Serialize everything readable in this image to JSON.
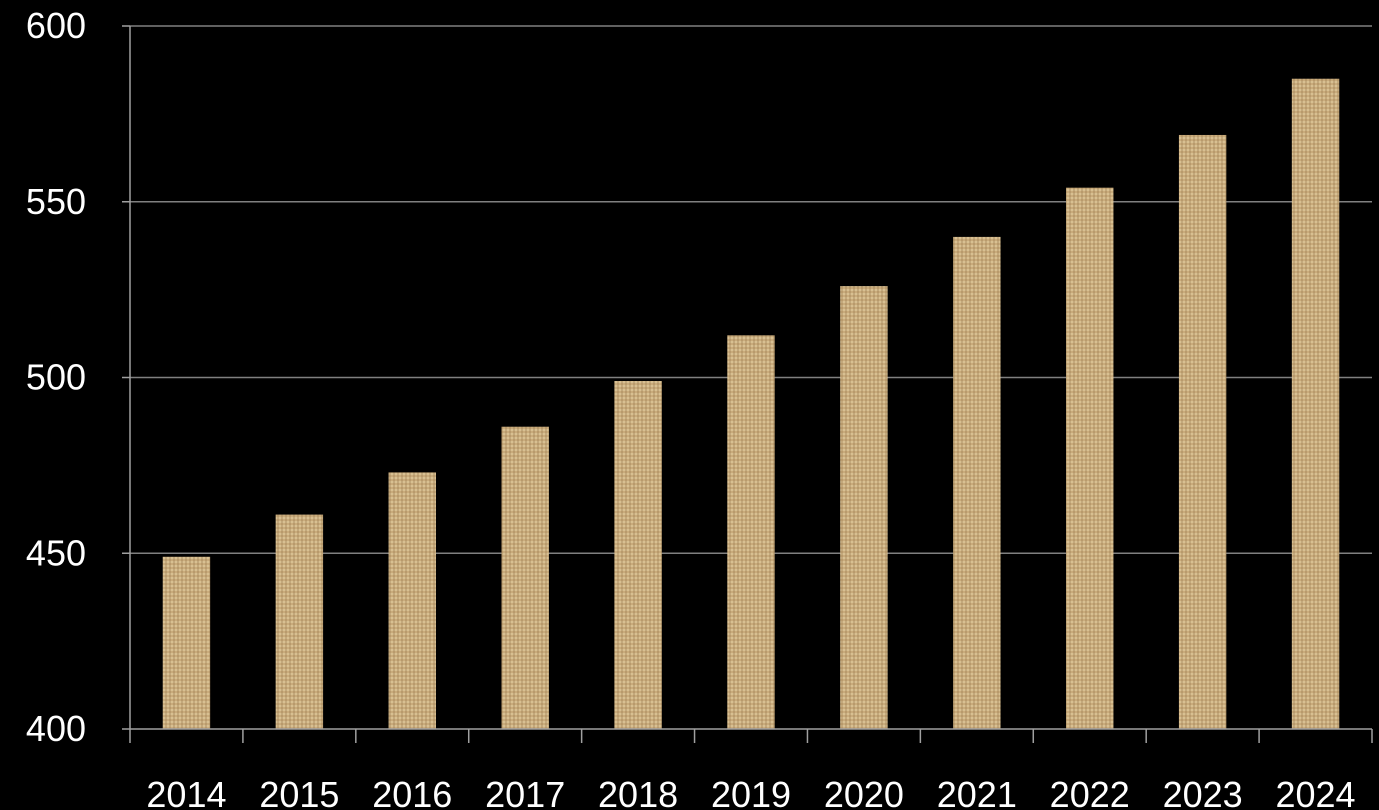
{
  "chart_data": {
    "type": "bar",
    "categories": [
      "2014",
      "2015",
      "2016",
      "2017",
      "2018",
      "2019",
      "2020",
      "2021",
      "2022",
      "2023",
      "2024"
    ],
    "values": [
      449,
      461,
      473,
      486,
      499,
      512,
      526,
      540,
      554,
      569,
      585
    ],
    "ylim": [
      400,
      600
    ],
    "yticks": [
      "400",
      "450",
      "500",
      "550",
      "600"
    ],
    "grid": true,
    "colors": {
      "background": "#000000",
      "bar_base": "#c9ab7c",
      "bar_light": "#e7d3a8",
      "bar_dark": "#8a6b3f",
      "grid": "#808080",
      "axis": "#a0a0a0",
      "text": "#ffffff"
    }
  }
}
